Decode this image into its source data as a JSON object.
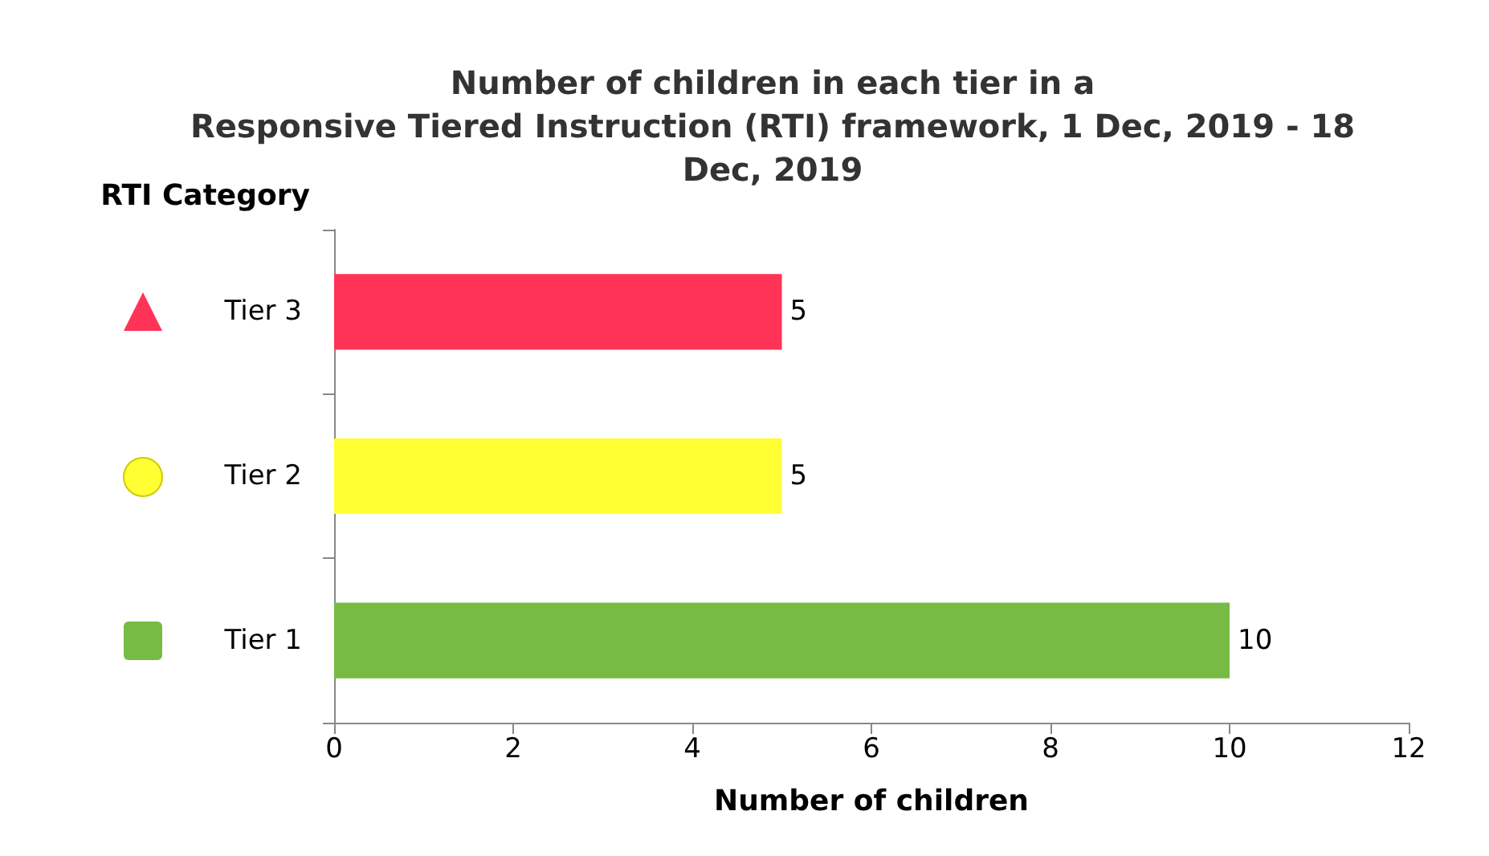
{
  "chart_data": {
    "type": "bar",
    "orientation": "horizontal",
    "title": "Number of children in each tier in a\nResponsive Tiered Instruction (RTI) framework, 1 Dec, 2019 - 18\nDec, 2019",
    "xlabel": "Number of children",
    "ylabel": "RTI Category",
    "categories": [
      "Tier 3",
      "Tier 2",
      "Tier 1"
    ],
    "values": [
      5,
      5,
      10
    ],
    "colors": [
      "#ff3355",
      "#ffff33",
      "#77bb44"
    ],
    "xlim": [
      0,
      12
    ],
    "xticks": [
      0,
      2,
      4,
      6,
      8,
      10,
      12
    ],
    "data_labels": true,
    "grid": false
  }
}
